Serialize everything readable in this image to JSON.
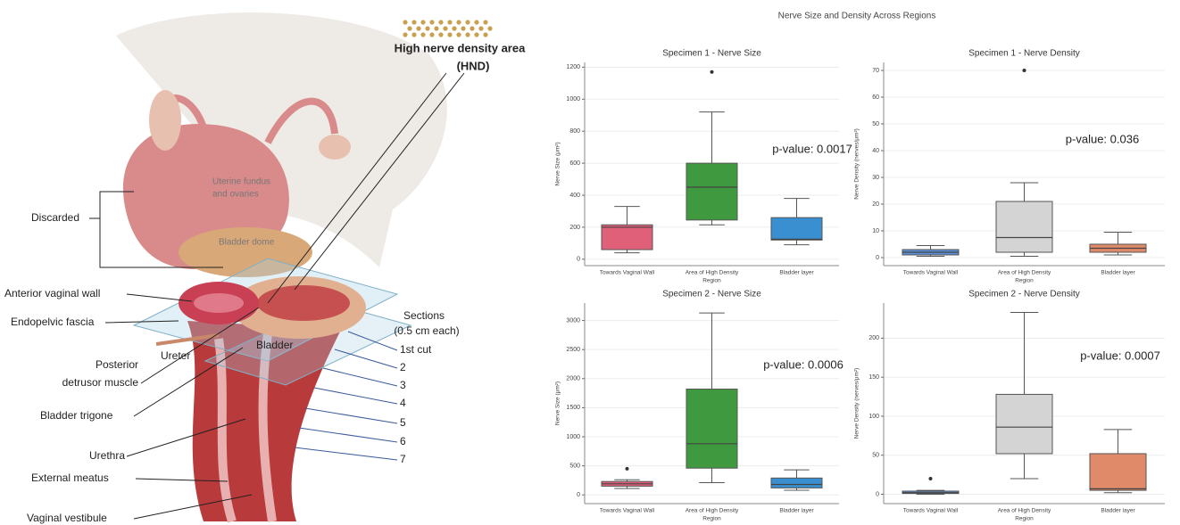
{
  "title": "Nerve Size and Density Across Regions",
  "illustration": {
    "discarded": "Discarded",
    "uterine_fundus": [
      "Uterine fundus",
      "and ovaries"
    ],
    "bladder_dome": "Bladder dome",
    "hnd": [
      "High nerve density area",
      "(HND)"
    ],
    "anterior_vaginal_wall": "Anterior vaginal wall",
    "endopelvic_fascia": "Endopelvic fascia",
    "ureter": "Ureter",
    "bladder": "Bladder",
    "posterior_detrusor": [
      "Posterior",
      "detrusor muscle"
    ],
    "bladder_trigone": "Bladder trigone",
    "urethra": "Urethra",
    "external_meatus": "External meatus",
    "vaginal_vestibule": "Vaginal vestibule",
    "sections": [
      "Sections",
      "(0.5 cm each)"
    ],
    "cuts": [
      "1st cut",
      "2",
      "3",
      "4",
      "5",
      "6",
      "7"
    ]
  },
  "chart_data": [
    {
      "type": "box",
      "title": "Specimen 1 - Nerve Size",
      "xlabel": "Region",
      "ylabel": "Nerve Size (μm²)",
      "annotation": "p-value: 0.0017",
      "grid": true,
      "ylim": [
        -40,
        1230
      ],
      "yticks": [
        0,
        200,
        400,
        600,
        800,
        1000,
        1200
      ],
      "categories": [
        "Towards Vaginal Wall",
        "Area of High Density",
        "Bladder layer"
      ],
      "boxes": [
        {
          "color": "#e0607a",
          "min": 40,
          "q1": 60,
          "median": 200,
          "q3": 215,
          "max": 330
        },
        {
          "color": "#3f9a3f",
          "min": 215,
          "q1": 245,
          "median": 450,
          "q3": 600,
          "max": 920,
          "outliers": [
            1170
          ]
        },
        {
          "color": "#3a8fd0",
          "min": 90,
          "q1": 120,
          "median": 125,
          "q3": 260,
          "max": 380
        }
      ]
    },
    {
      "type": "box",
      "title": "Specimen 1 - Nerve Density",
      "xlabel": "Region",
      "ylabel": "Nerve Density (nerves/μm²)",
      "annotation": "p-value: 0.036",
      "grid": true,
      "ylim": [
        -3,
        73
      ],
      "yticks": [
        0,
        10,
        20,
        30,
        40,
        50,
        60,
        70
      ],
      "categories": [
        "Towards Vaginal Wall",
        "Area of High Density",
        "Bladder layer"
      ],
      "boxes": [
        {
          "color": "#5b8fd6",
          "min": 0.5,
          "q1": 1,
          "median": 2,
          "q3": 3,
          "max": 4.5
        },
        {
          "color": "#d4d4d4",
          "min": 0.5,
          "q1": 2,
          "median": 7.5,
          "q3": 21,
          "max": 28,
          "outliers": [
            70
          ]
        },
        {
          "color": "#e08a6a",
          "min": 1,
          "q1": 2,
          "median": 3.5,
          "q3": 5,
          "max": 9.5
        }
      ]
    },
    {
      "type": "box",
      "title": "Specimen 2 - Nerve Size",
      "xlabel": "Region",
      "ylabel": "Nerve Size (μm²)",
      "annotation": "p-value: 0.0006",
      "grid": true,
      "ylim": [
        -150,
        3300
      ],
      "yticks": [
        0,
        500,
        1000,
        1500,
        2000,
        2500,
        3000
      ],
      "categories": [
        "Towards Vaginal Wall",
        "Area of High Density",
        "Bladder layer"
      ],
      "boxes": [
        {
          "color": "#e0607a",
          "min": 110,
          "q1": 150,
          "median": 190,
          "q3": 230,
          "max": 260,
          "outliers": [
            450
          ]
        },
        {
          "color": "#3f9a3f",
          "min": 210,
          "q1": 460,
          "median": 880,
          "q3": 1820,
          "max": 3130
        },
        {
          "color": "#3a8fd0",
          "min": 80,
          "q1": 120,
          "median": 180,
          "q3": 290,
          "max": 430
        }
      ]
    },
    {
      "type": "box",
      "title": "Specimen 2 - Nerve Density",
      "xlabel": "Region",
      "ylabel": "Nerve Density (nerves/μm²)",
      "annotation": "p-value: 0.0007",
      "grid": true,
      "ylim": [
        -12,
        245
      ],
      "yticks": [
        0,
        50,
        100,
        150,
        200
      ],
      "categories": [
        "Towards Vaginal Wall",
        "Area of High Density",
        "Bladder layer"
      ],
      "boxes": [
        {
          "color": "#5b8fd6",
          "min": 0,
          "q1": 1,
          "median": 2,
          "q3": 4,
          "max": 5,
          "outliers": [
            20
          ]
        },
        {
          "color": "#d4d4d4",
          "min": 20,
          "q1": 52,
          "median": 86,
          "q3": 128,
          "max": 233
        },
        {
          "color": "#e08a6a",
          "min": 2,
          "q1": 5,
          "median": 7,
          "q3": 52,
          "max": 83
        }
      ]
    }
  ]
}
